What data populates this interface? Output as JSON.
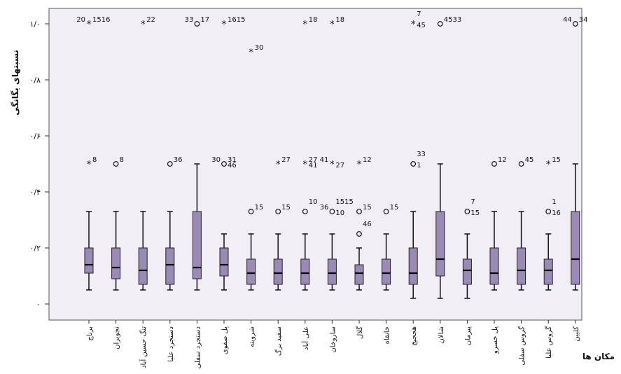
{
  "chart_data": {
    "type": "boxplot",
    "ylabel": "نسبتهای یگانگی",
    "xlabel": "مکان ها",
    "ylim": [
      0,
      1.0
    ],
    "yticks": [
      {
        "value": 0,
        "label": "۰"
      },
      {
        "value": 0.2,
        "label": "۰/۲"
      },
      {
        "value": 0.4,
        "label": "۰/۴"
      },
      {
        "value": 0.6,
        "label": "۰/۶"
      },
      {
        "value": 0.8,
        "label": "۰/۸"
      },
      {
        "value": 1.0,
        "label": "۱/۰"
      }
    ],
    "grid": false,
    "box_color": "#9c8ab6",
    "plot_background": "#f2eef6",
    "categories": [
      "برناج",
      "نجوبران",
      "تنگ حسین آباد",
      "دستجرد علیا",
      "دستجرد سفلی",
      "پل صفوی",
      "شرویته",
      "سفید برگ",
      "علی آباد",
      "ساروخان",
      "گلال",
      "خانقاه",
      "هججیج",
      "شالان",
      "پیرمان",
      "پل خسرو",
      "گروس سفلی",
      "گروس علیا",
      "کلیین"
    ],
    "boxes": [
      {
        "min": 0.05,
        "q1": 0.11,
        "median": 0.14,
        "q3": 0.2,
        "max": 0.33
      },
      {
        "min": 0.05,
        "q1": 0.09,
        "median": 0.13,
        "q3": 0.2,
        "max": 0.33
      },
      {
        "min": 0.05,
        "q1": 0.07,
        "median": 0.12,
        "q3": 0.2,
        "max": 0.33
      },
      {
        "min": 0.05,
        "q1": 0.07,
        "median": 0.14,
        "q3": 0.2,
        "max": 0.33
      },
      {
        "min": 0.05,
        "q1": 0.09,
        "median": 0.13,
        "q3": 0.33,
        "max": 0.5
      },
      {
        "min": 0.05,
        "q1": 0.1,
        "median": 0.14,
        "q3": 0.2,
        "max": 0.25
      },
      {
        "min": 0.05,
        "q1": 0.07,
        "median": 0.11,
        "q3": 0.16,
        "max": 0.25
      },
      {
        "min": 0.05,
        "q1": 0.07,
        "median": 0.11,
        "q3": 0.16,
        "max": 0.25
      },
      {
        "min": 0.05,
        "q1": 0.07,
        "median": 0.11,
        "q3": 0.16,
        "max": 0.25
      },
      {
        "min": 0.05,
        "q1": 0.07,
        "median": 0.11,
        "q3": 0.16,
        "max": 0.25
      },
      {
        "min": 0.05,
        "q1": 0.07,
        "median": 0.11,
        "q3": 0.14,
        "max": 0.2
      },
      {
        "min": 0.05,
        "q1": 0.07,
        "median": 0.11,
        "q3": 0.16,
        "max": 0.25
      },
      {
        "min": 0.02,
        "q1": 0.07,
        "median": 0.11,
        "q3": 0.2,
        "max": 0.33
      },
      {
        "min": 0.02,
        "q1": 0.1,
        "median": 0.16,
        "q3": 0.33,
        "max": 0.5
      },
      {
        "min": 0.02,
        "q1": 0.07,
        "median": 0.12,
        "q3": 0.16,
        "max": 0.25
      },
      {
        "min": 0.05,
        "q1": 0.07,
        "median": 0.11,
        "q3": 0.2,
        "max": 0.33
      },
      {
        "min": 0.05,
        "q1": 0.07,
        "median": 0.12,
        "q3": 0.2,
        "max": 0.33
      },
      {
        "min": 0.05,
        "q1": 0.07,
        "median": 0.12,
        "q3": 0.16,
        "max": 0.25
      },
      {
        "min": 0.05,
        "q1": 0.07,
        "median": 0.16,
        "q3": 0.33,
        "max": 0.5
      }
    ],
    "outliers": [
      {
        "cat": 0,
        "y": 1.0,
        "shape": "star"
      },
      {
        "cat": 0,
        "y": 0.5,
        "shape": "star"
      },
      {
        "cat": 1,
        "y": 0.5,
        "shape": "circle"
      },
      {
        "cat": 2,
        "y": 1.0,
        "shape": "star"
      },
      {
        "cat": 3,
        "y": 0.5,
        "shape": "circle"
      },
      {
        "cat": 4,
        "y": 1.0,
        "shape": "circle"
      },
      {
        "cat": 5,
        "y": 1.0,
        "shape": "star"
      },
      {
        "cat": 5,
        "y": 0.5,
        "shape": "circle"
      },
      {
        "cat": 6,
        "y": 0.9,
        "shape": "star"
      },
      {
        "cat": 6,
        "y": 0.33,
        "shape": "circle"
      },
      {
        "cat": 7,
        "y": 0.5,
        "shape": "star"
      },
      {
        "cat": 7,
        "y": 0.33,
        "shape": "circle"
      },
      {
        "cat": 8,
        "y": 1.0,
        "shape": "star"
      },
      {
        "cat": 8,
        "y": 0.5,
        "shape": "star"
      },
      {
        "cat": 8,
        "y": 0.33,
        "shape": "circle"
      },
      {
        "cat": 9,
        "y": 1.0,
        "shape": "star"
      },
      {
        "cat": 9,
        "y": 0.5,
        "shape": "star"
      },
      {
        "cat": 9,
        "y": 0.33,
        "shape": "circle"
      },
      {
        "cat": 10,
        "y": 0.5,
        "shape": "star"
      },
      {
        "cat": 10,
        "y": 0.33,
        "shape": "circle"
      },
      {
        "cat": 10,
        "y": 0.25,
        "shape": "circle"
      },
      {
        "cat": 11,
        "y": 0.33,
        "shape": "circle"
      },
      {
        "cat": 12,
        "y": 1.0,
        "shape": "star"
      },
      {
        "cat": 12,
        "y": 0.5,
        "shape": "circle"
      },
      {
        "cat": 13,
        "y": 1.0,
        "shape": "circle"
      },
      {
        "cat": 14,
        "y": 0.33,
        "shape": "circle"
      },
      {
        "cat": 15,
        "y": 0.5,
        "shape": "circle"
      },
      {
        "cat": 16,
        "y": 0.5,
        "shape": "circle"
      },
      {
        "cat": 17,
        "y": 0.5,
        "shape": "star"
      },
      {
        "cat": 17,
        "y": 0.33,
        "shape": "circle"
      },
      {
        "cat": 18,
        "y": 1.0,
        "shape": "circle"
      }
    ],
    "annotations": [
      {
        "cat": 0,
        "y": 1.0,
        "text": "20",
        "side": "left",
        "dy": 0
      },
      {
        "cat": 0,
        "y": 1.0,
        "text": "1516",
        "side": "right",
        "dy": 0
      },
      {
        "cat": 0,
        "y": 0.5,
        "text": "8",
        "side": "right",
        "dy": 0
      },
      {
        "cat": 1,
        "y": 0.5,
        "text": "8",
        "side": "right",
        "dy": 0
      },
      {
        "cat": 2,
        "y": 1.0,
        "text": "22",
        "side": "right",
        "dy": 0
      },
      {
        "cat": 3,
        "y": 0.5,
        "text": "36",
        "side": "right",
        "dy": 0
      },
      {
        "cat": 4,
        "y": 1.0,
        "text": "33",
        "side": "left",
        "dy": 0
      },
      {
        "cat": 4,
        "y": 1.0,
        "text": "17",
        "side": "right",
        "dy": 0
      },
      {
        "cat": 5,
        "y": 1.0,
        "text": "1615",
        "side": "right",
        "dy": 0
      },
      {
        "cat": 5,
        "y": 0.5,
        "text": "30",
        "side": "left",
        "dy": 0
      },
      {
        "cat": 5,
        "y": 0.5,
        "text": "31",
        "side": "right",
        "dy": 0
      },
      {
        "cat": 5,
        "y": 0.5,
        "text": "46",
        "side": "right",
        "dy": 1
      },
      {
        "cat": 6,
        "y": 0.9,
        "text": "30",
        "side": "right",
        "dy": 0
      },
      {
        "cat": 6,
        "y": 0.33,
        "text": "15",
        "side": "right",
        "dy": 0
      },
      {
        "cat": 7,
        "y": 0.5,
        "text": "27",
        "side": "right",
        "dy": 0
      },
      {
        "cat": 7,
        "y": 0.33,
        "text": "15",
        "side": "right",
        "dy": 0
      },
      {
        "cat": 8,
        "y": 1.0,
        "text": "18",
        "side": "right",
        "dy": 0
      },
      {
        "cat": 8,
        "y": 0.5,
        "text": "27",
        "side": "right",
        "dy": 0
      },
      {
        "cat": 8,
        "y": 0.5,
        "text": "41",
        "side": "right",
        "dy": 1
      },
      {
        "cat": 8,
        "y": 0.33,
        "text": "10",
        "side": "right",
        "dy": -1
      },
      {
        "cat": 9,
        "y": 1.0,
        "text": "18",
        "side": "right",
        "dy": 0
      },
      {
        "cat": 9,
        "y": 0.5,
        "text": "41",
        "side": "left",
        "dy": 0
      },
      {
        "cat": 9,
        "y": 0.5,
        "text": "27",
        "side": "right",
        "dy": 1
      },
      {
        "cat": 9,
        "y": 0.33,
        "text": "36",
        "side": "left",
        "dy": 0
      },
      {
        "cat": 9,
        "y": 0.33,
        "text": "1515",
        "side": "right",
        "dy": -1
      },
      {
        "cat": 9,
        "y": 0.33,
        "text": "10",
        "side": "right",
        "dy": 1
      },
      {
        "cat": 10,
        "y": 0.5,
        "text": "12",
        "side": "right",
        "dy": 0
      },
      {
        "cat": 10,
        "y": 0.33,
        "text": "15",
        "side": "right",
        "dy": 0
      },
      {
        "cat": 10,
        "y": 0.25,
        "text": "46",
        "side": "right",
        "dy": -1
      },
      {
        "cat": 11,
        "y": 0.33,
        "text": "15",
        "side": "right",
        "dy": 0
      },
      {
        "cat": 12,
        "y": 1.0,
        "text": "7",
        "side": "right",
        "dy": -1
      },
      {
        "cat": 12,
        "y": 1.0,
        "text": "45",
        "side": "right",
        "dy": 1
      },
      {
        "cat": 12,
        "y": 0.5,
        "text": "33",
        "side": "right",
        "dy": -1
      },
      {
        "cat": 12,
        "y": 0.5,
        "text": "1",
        "side": "right",
        "dy": 1
      },
      {
        "cat": 13,
        "y": 1.0,
        "text": "4533",
        "side": "right",
        "dy": 0
      },
      {
        "cat": 14,
        "y": 0.33,
        "text": "7",
        "side": "right",
        "dy": -1
      },
      {
        "cat": 14,
        "y": 0.33,
        "text": "15",
        "side": "right",
        "dy": 1
      },
      {
        "cat": 15,
        "y": 0.5,
        "text": "12",
        "side": "right",
        "dy": 0
      },
      {
        "cat": 16,
        "y": 0.5,
        "text": "45",
        "side": "right",
        "dy": 0
      },
      {
        "cat": 17,
        "y": 0.5,
        "text": "15",
        "side": "right",
        "dy": 0
      },
      {
        "cat": 17,
        "y": 0.33,
        "text": "1",
        "side": "right",
        "dy": -1
      },
      {
        "cat": 17,
        "y": 0.33,
        "text": "16",
        "side": "right",
        "dy": 1
      },
      {
        "cat": 18,
        "y": 1.0,
        "text": "44",
        "side": "left",
        "dy": 0
      },
      {
        "cat": 18,
        "y": 1.0,
        "text": "34",
        "side": "right",
        "dy": 0
      }
    ]
  }
}
